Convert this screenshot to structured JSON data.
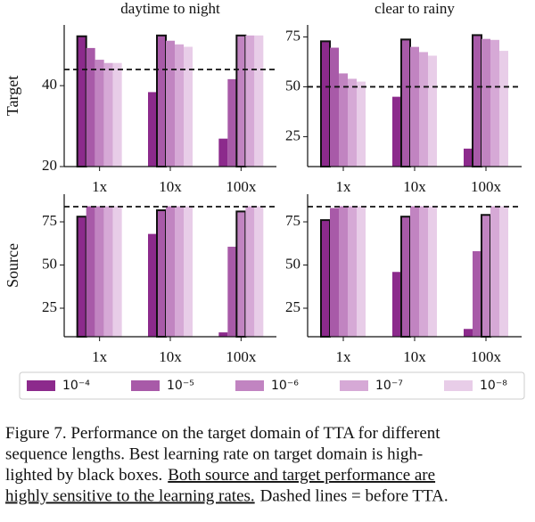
{
  "chart_data": [
    {
      "type": "bar",
      "title": "daytime to night",
      "ylabel": "Target",
      "categories": [
        "1x",
        "10x",
        "100x"
      ],
      "series": [
        {
          "values": [
            52.2,
            38.4,
            26.9
          ]
        },
        {
          "values": [
            49.3,
            52.4,
            41.6
          ]
        },
        {
          "values": [
            46.4,
            51.1,
            52.4
          ]
        },
        {
          "values": [
            45.6,
            50.2,
            52.4
          ]
        },
        {
          "values": [
            45.6,
            49.6,
            52.4
          ]
        }
      ],
      "best": [
        0,
        1,
        2
      ],
      "reference_line": 44,
      "ylim": [
        20,
        55
      ],
      "yticks": [
        20,
        40
      ]
    },
    {
      "type": "bar",
      "title": "clear to rainy",
      "categories": [
        "1x",
        "10x",
        "100x"
      ],
      "series": [
        {
          "values": [
            72.8,
            45,
            19
          ]
        },
        {
          "values": [
            69.6,
            73.7,
            75.9
          ]
        },
        {
          "values": [
            56.7,
            70,
            74
          ]
        },
        {
          "values": [
            54,
            67.4,
            73.5
          ]
        },
        {
          "values": [
            52.6,
            65.6,
            68
          ]
        }
      ],
      "best": [
        0,
        1,
        1
      ],
      "reference_line": 50,
      "ylim": [
        10,
        81
      ],
      "yticks": [
        25,
        50,
        75
      ]
    },
    {
      "type": "bar",
      "ylabel": "Source",
      "categories": [
        "1x",
        "10x",
        "100x"
      ],
      "series": [
        {
          "values": [
            78,
            68,
            11
          ]
        },
        {
          "values": [
            84,
            81.7,
            60.6
          ]
        },
        {
          "values": [
            84,
            84,
            81
          ]
        },
        {
          "values": [
            84,
            84,
            84
          ]
        },
        {
          "values": [
            84,
            84,
            84
          ]
        }
      ],
      "best": [
        0,
        1,
        2
      ],
      "reference_line": 83.8,
      "ylim": [
        8.5,
        91
      ],
      "yticks": [
        25,
        50,
        75
      ]
    },
    {
      "type": "bar",
      "categories": [
        "1x",
        "10x",
        "100x"
      ],
      "series": [
        {
          "values": [
            76,
            46,
            13
          ]
        },
        {
          "values": [
            83,
            78,
            58
          ]
        },
        {
          "values": [
            84,
            84,
            79
          ]
        },
        {
          "values": [
            84,
            84,
            84
          ]
        },
        {
          "values": [
            84,
            84,
            84
          ]
        }
      ],
      "best": [
        0,
        1,
        2
      ],
      "reference_line": 83.8,
      "ylim": [
        8.5,
        91
      ],
      "yticks": [
        25,
        50,
        75
      ]
    }
  ],
  "legend": {
    "entries": [
      {
        "label": "10⁻⁴",
        "color": "#8c2a8c"
      },
      {
        "label": "10⁻⁵",
        "color": "#a85aa8"
      },
      {
        "label": "10⁻⁶",
        "color": "#c184c1"
      },
      {
        "label": "10⁻⁷",
        "color": "#d6a9d6"
      },
      {
        "label": "10⁻⁸",
        "color": "#e8cde8"
      }
    ]
  },
  "caption": {
    "lines": [
      [
        {
          "text": "Figure 7. Performance on the target domain of TTA for different",
          "underline": false
        }
      ],
      [
        {
          "text": "sequence lengths. Best learning rate on target domain is high-",
          "underline": false
        }
      ],
      [
        {
          "text": "lighted by black boxes.",
          "underline": false
        },
        {
          "text": "Both source and target performance are",
          "underline": true
        }
      ],
      [
        {
          "text": "highly sensitive to the learning rates.",
          "underline": true
        },
        {
          "text": "Dashed lines = before TTA.",
          "underline": false
        }
      ]
    ]
  }
}
